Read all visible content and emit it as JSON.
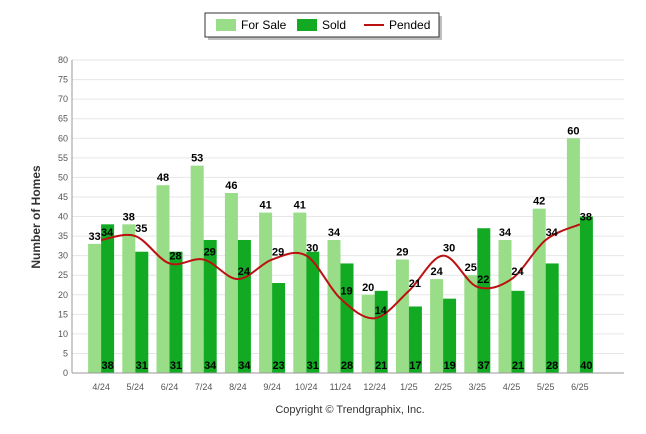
{
  "chart_data": {
    "type": "bar",
    "categories": [
      "4/24",
      "5/24",
      "6/24",
      "7/24",
      "8/24",
      "9/24",
      "10/24",
      "11/24",
      "12/24",
      "1/25",
      "2/25",
      "3/25",
      "4/25",
      "5/25",
      "6/25"
    ],
    "series": [
      {
        "name": "For Sale",
        "kind": "bar",
        "color": "#99dd88",
        "values": [
          33,
          38,
          48,
          53,
          46,
          41,
          41,
          34,
          20,
          29,
          24,
          25,
          34,
          42,
          60
        ]
      },
      {
        "name": "Sold",
        "kind": "bar",
        "color": "#11aa22",
        "values": [
          38,
          31,
          31,
          34,
          34,
          23,
          31,
          28,
          21,
          17,
          19,
          37,
          21,
          28,
          40
        ]
      },
      {
        "name": "Pended",
        "kind": "line",
        "color": "#bb1111",
        "values": [
          34,
          35,
          28,
          29,
          24,
          29,
          30,
          19,
          14,
          21,
          30,
          22,
          24,
          34,
          38
        ]
      }
    ],
    "ylabel": "Number of Homes",
    "xlabel": "",
    "ylim": [
      0,
      80
    ],
    "yticks": [
      0,
      5,
      10,
      15,
      20,
      25,
      30,
      35,
      40,
      45,
      50,
      55,
      60,
      65,
      70,
      75,
      80
    ],
    "grid": true,
    "legend_position": "top-center",
    "copyright": "Copyright © Trendgraphix, Inc."
  }
}
